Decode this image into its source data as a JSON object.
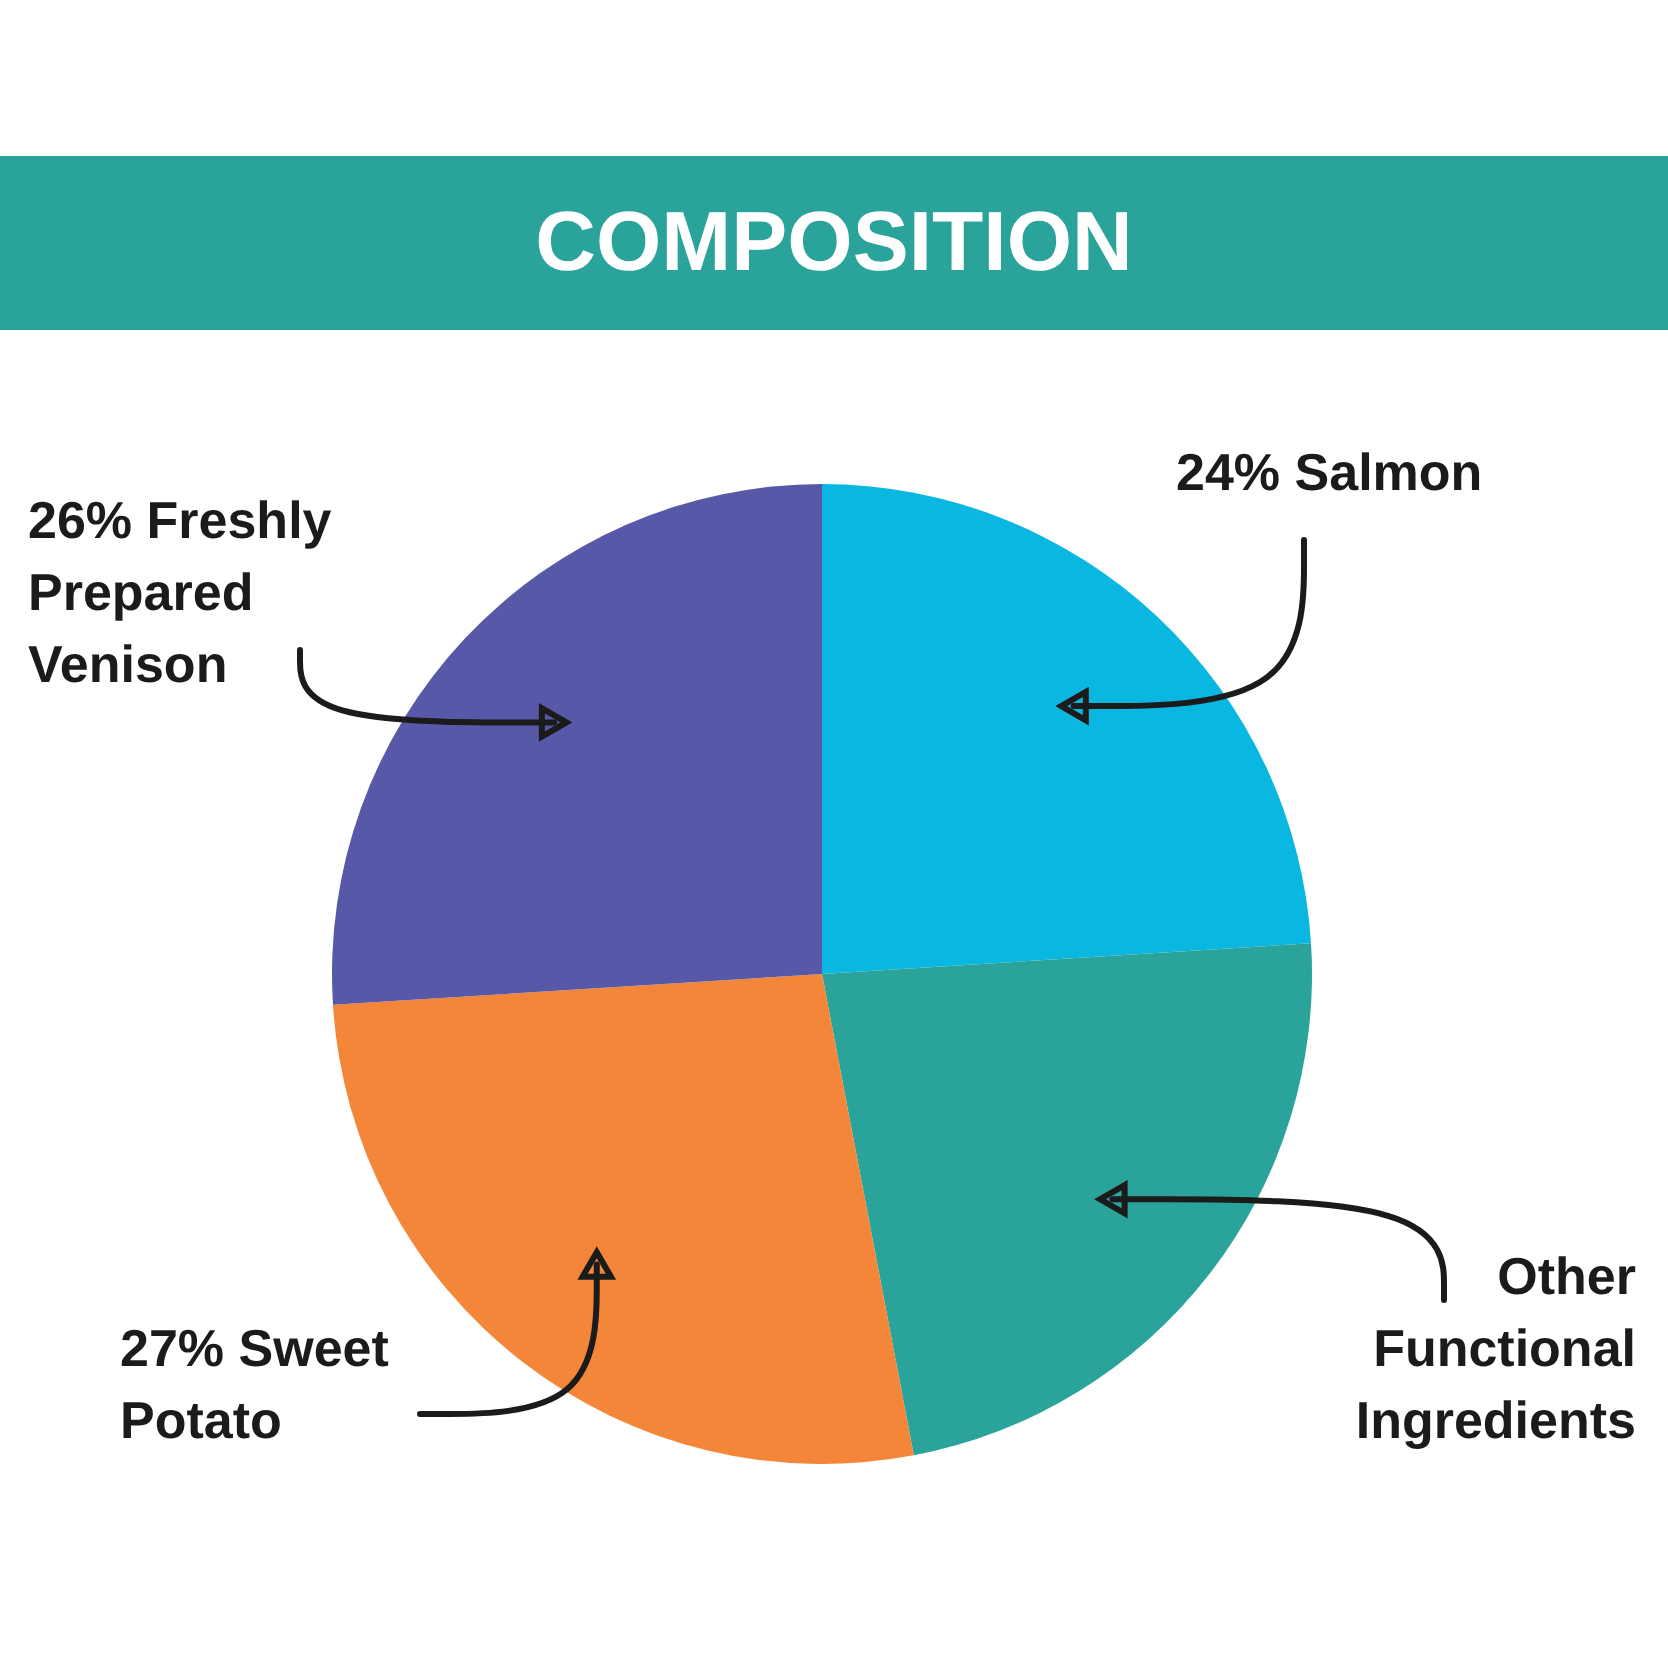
{
  "chart_data": {
    "type": "pie",
    "title": "COMPOSITION",
    "categories": [
      "Salmon",
      "Other Functional Ingredients",
      "Sweet Potato",
      "Freshly Prepared Venison"
    ],
    "values": [
      24,
      23,
      27,
      26
    ],
    "colors": [
      "#0ab7e1",
      "#2aa49a",
      "#f38639",
      "#5759a8"
    ],
    "value_labels": [
      "24%",
      null,
      "27%",
      "26%"
    ]
  }
}
